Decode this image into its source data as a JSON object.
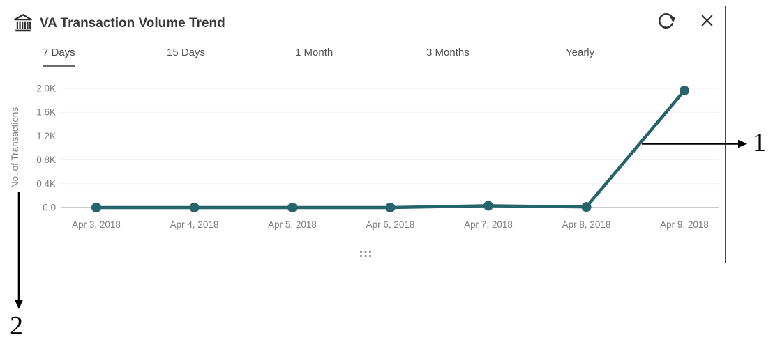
{
  "window": {
    "title": "VA Transaction Volume Trend"
  },
  "icons": {
    "header": "bank-icon",
    "refresh": "refresh-icon",
    "close": "close-icon",
    "grip": "drag-handle-dots-icon"
  },
  "tabs": [
    {
      "label": "7 Days",
      "selected": true
    },
    {
      "label": "15 Days",
      "selected": false
    },
    {
      "label": "1 Month",
      "selected": false
    },
    {
      "label": "3 Months",
      "selected": false
    },
    {
      "label": "Yearly",
      "selected": false
    }
  ],
  "chart_data": {
    "type": "line",
    "title": "VA Transaction Volume Trend",
    "x": [
      "Apr 3, 2018",
      "Apr 4, 2018",
      "Apr 5, 2018",
      "Apr 6, 2018",
      "Apr 7, 2018",
      "Apr 8, 2018",
      "Apr 9, 2018"
    ],
    "series": [
      {
        "name": "No. of Transactions",
        "values": [
          0,
          0,
          0,
          0,
          30,
          10,
          1965
        ]
      }
    ],
    "xlabel": "",
    "ylabel": "No. of Transactions",
    "ylim": [
      0,
      2000
    ],
    "ytick_values": [
      0,
      400,
      800,
      1200,
      1600,
      2000
    ],
    "ytick_labels": [
      "0.0",
      "0.4K",
      "0.8K",
      "1.2K",
      "1.6K",
      "2.0K"
    ],
    "grid": true,
    "legend": false,
    "line_color": "#26646b",
    "point_color": "#26646b"
  },
  "annotations": {
    "arrow1_label": "1",
    "arrow2_label": "2"
  },
  "colors": {
    "grid_line": "#eef1f4",
    "axis_line": "#a9adb0",
    "tick_text": "#7b7c7f",
    "title_text": "#39393b",
    "tab_text": "#505052",
    "selected_tab_underline": "#6b6b6d",
    "panel_border": "#48484a",
    "icon": "#323234",
    "annotation": "#000000",
    "grip_dot": "#8f9092"
  }
}
